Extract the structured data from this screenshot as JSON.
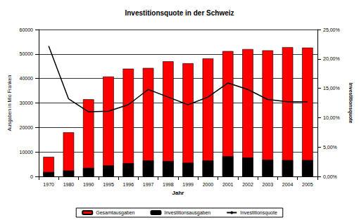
{
  "chart_data": {
    "type": "bar",
    "title": "Investitionsquote in der Schweiz",
    "x_label": "Jahr",
    "y_label": "Ausgaben in Mio Franken",
    "y2_label": "Investitionsquote",
    "categories": [
      "1970",
      "1980",
      "1990",
      "1995",
      "1996",
      "1997",
      "1998",
      "1999",
      "2000",
      "2001",
      "2002",
      "2003",
      "2004",
      "2005"
    ],
    "series": [
      {
        "name": "Gesamtausgaben",
        "type": "bar",
        "color": "#ff0000",
        "values": [
          8000,
          18000,
          31500,
          40800,
          44000,
          44300,
          47000,
          46200,
          48200,
          51200,
          52000,
          51500,
          52800,
          52600
        ]
      },
      {
        "name": "Investitionsausgaben",
        "type": "bar",
        "color": "#000000",
        "values": [
          1800,
          2400,
          3500,
          4500,
          5400,
          6500,
          6300,
          5600,
          6500,
          8200,
          7700,
          6800,
          6700,
          6700
        ]
      },
      {
        "name": "Investitionsquote",
        "type": "line",
        "axis": "y2",
        "color": "#000000",
        "marker": "none",
        "values": [
          22.2,
          13.2,
          11.0,
          11.1,
          12.2,
          14.8,
          13.5,
          12.2,
          13.5,
          15.9,
          14.8,
          13.1,
          12.7,
          12.7
        ]
      }
    ],
    "ylim": [
      0,
      60000
    ],
    "yticks": [
      0,
      10000,
      20000,
      30000,
      40000,
      50000,
      60000
    ],
    "y2lim": [
      0,
      25
    ],
    "y2ticks": [
      {
        "value": 0,
        "label": "0,00%"
      },
      {
        "value": 5,
        "label": "5,00%"
      },
      {
        "value": 10,
        "label": "10,00%"
      },
      {
        "value": 15,
        "label": "15,00%"
      },
      {
        "value": 20,
        "label": "20,00%"
      },
      {
        "value": 25,
        "label": "25,00%"
      }
    ],
    "grid": true,
    "legend": "bottom"
  }
}
